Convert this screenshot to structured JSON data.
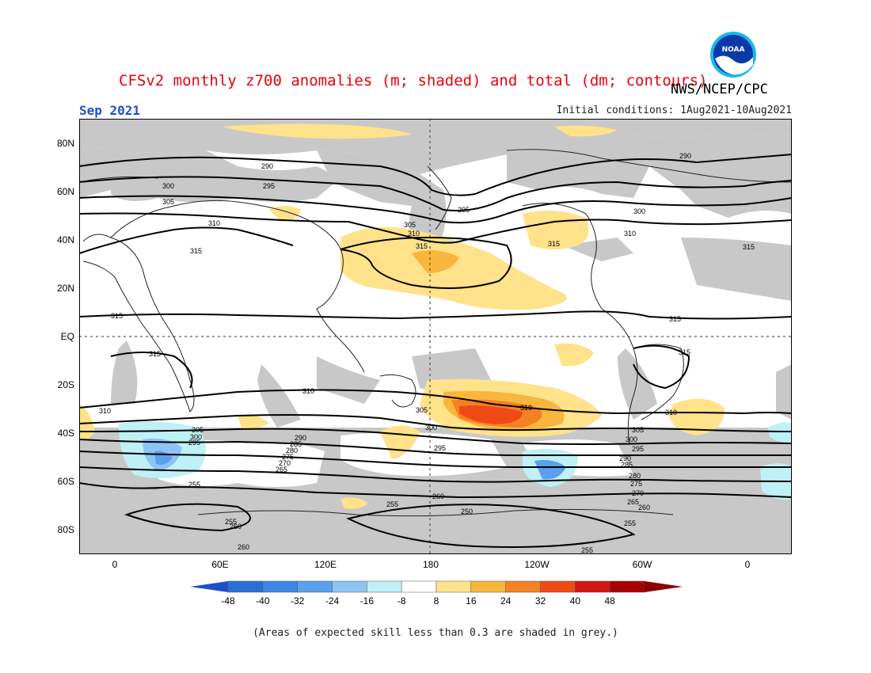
{
  "header": {
    "title": "CFSv2 monthly z700 anomalies (m; shaded) and total (dm; contours)",
    "organization": "NWS/NCEP/CPC",
    "logo_text": "NOAA",
    "valid_month": "Sep 2021",
    "initial_conditions": "Initial conditions: 1Aug2021-10Aug2021"
  },
  "axes": {
    "lat_labels": [
      "80N",
      "60N",
      "40N",
      "20N",
      "EQ",
      "20S",
      "40S",
      "60S",
      "80S"
    ],
    "lon_labels": [
      "0",
      "60E",
      "120E",
      "180",
      "120W",
      "60W",
      "0"
    ]
  },
  "contour_labels": {
    "northern": [
      "290",
      "295",
      "300",
      "305",
      "310",
      "315"
    ],
    "southern": [
      "310",
      "305",
      "300",
      "295",
      "290",
      "285",
      "280",
      "275",
      "270",
      "265",
      "260",
      "255",
      "250"
    ]
  },
  "colorbar": {
    "ticks": [
      "-48",
      "-40",
      "-32",
      "-24",
      "-16",
      "-8",
      "8",
      "16",
      "24",
      "32",
      "40",
      "48"
    ],
    "colors": [
      "#2a6fd8",
      "#3d86e6",
      "#5aa0ef",
      "#8ec4f4",
      "#bff0f5",
      "#ffffff",
      "#ffe28a",
      "#f8b63c",
      "#f58122",
      "#ef4a16",
      "#d21612",
      "#a80000"
    ],
    "arrow_left_color": "#1e4fc8",
    "arrow_right_color": "#8a0000"
  },
  "colors": {
    "skill_grey": "#c8c8c8",
    "title_red": "#e8000b",
    "month_blue": "#1f4fd6"
  },
  "footnote": "(Areas of expected skill less than 0.3 are shaded in grey.)"
}
